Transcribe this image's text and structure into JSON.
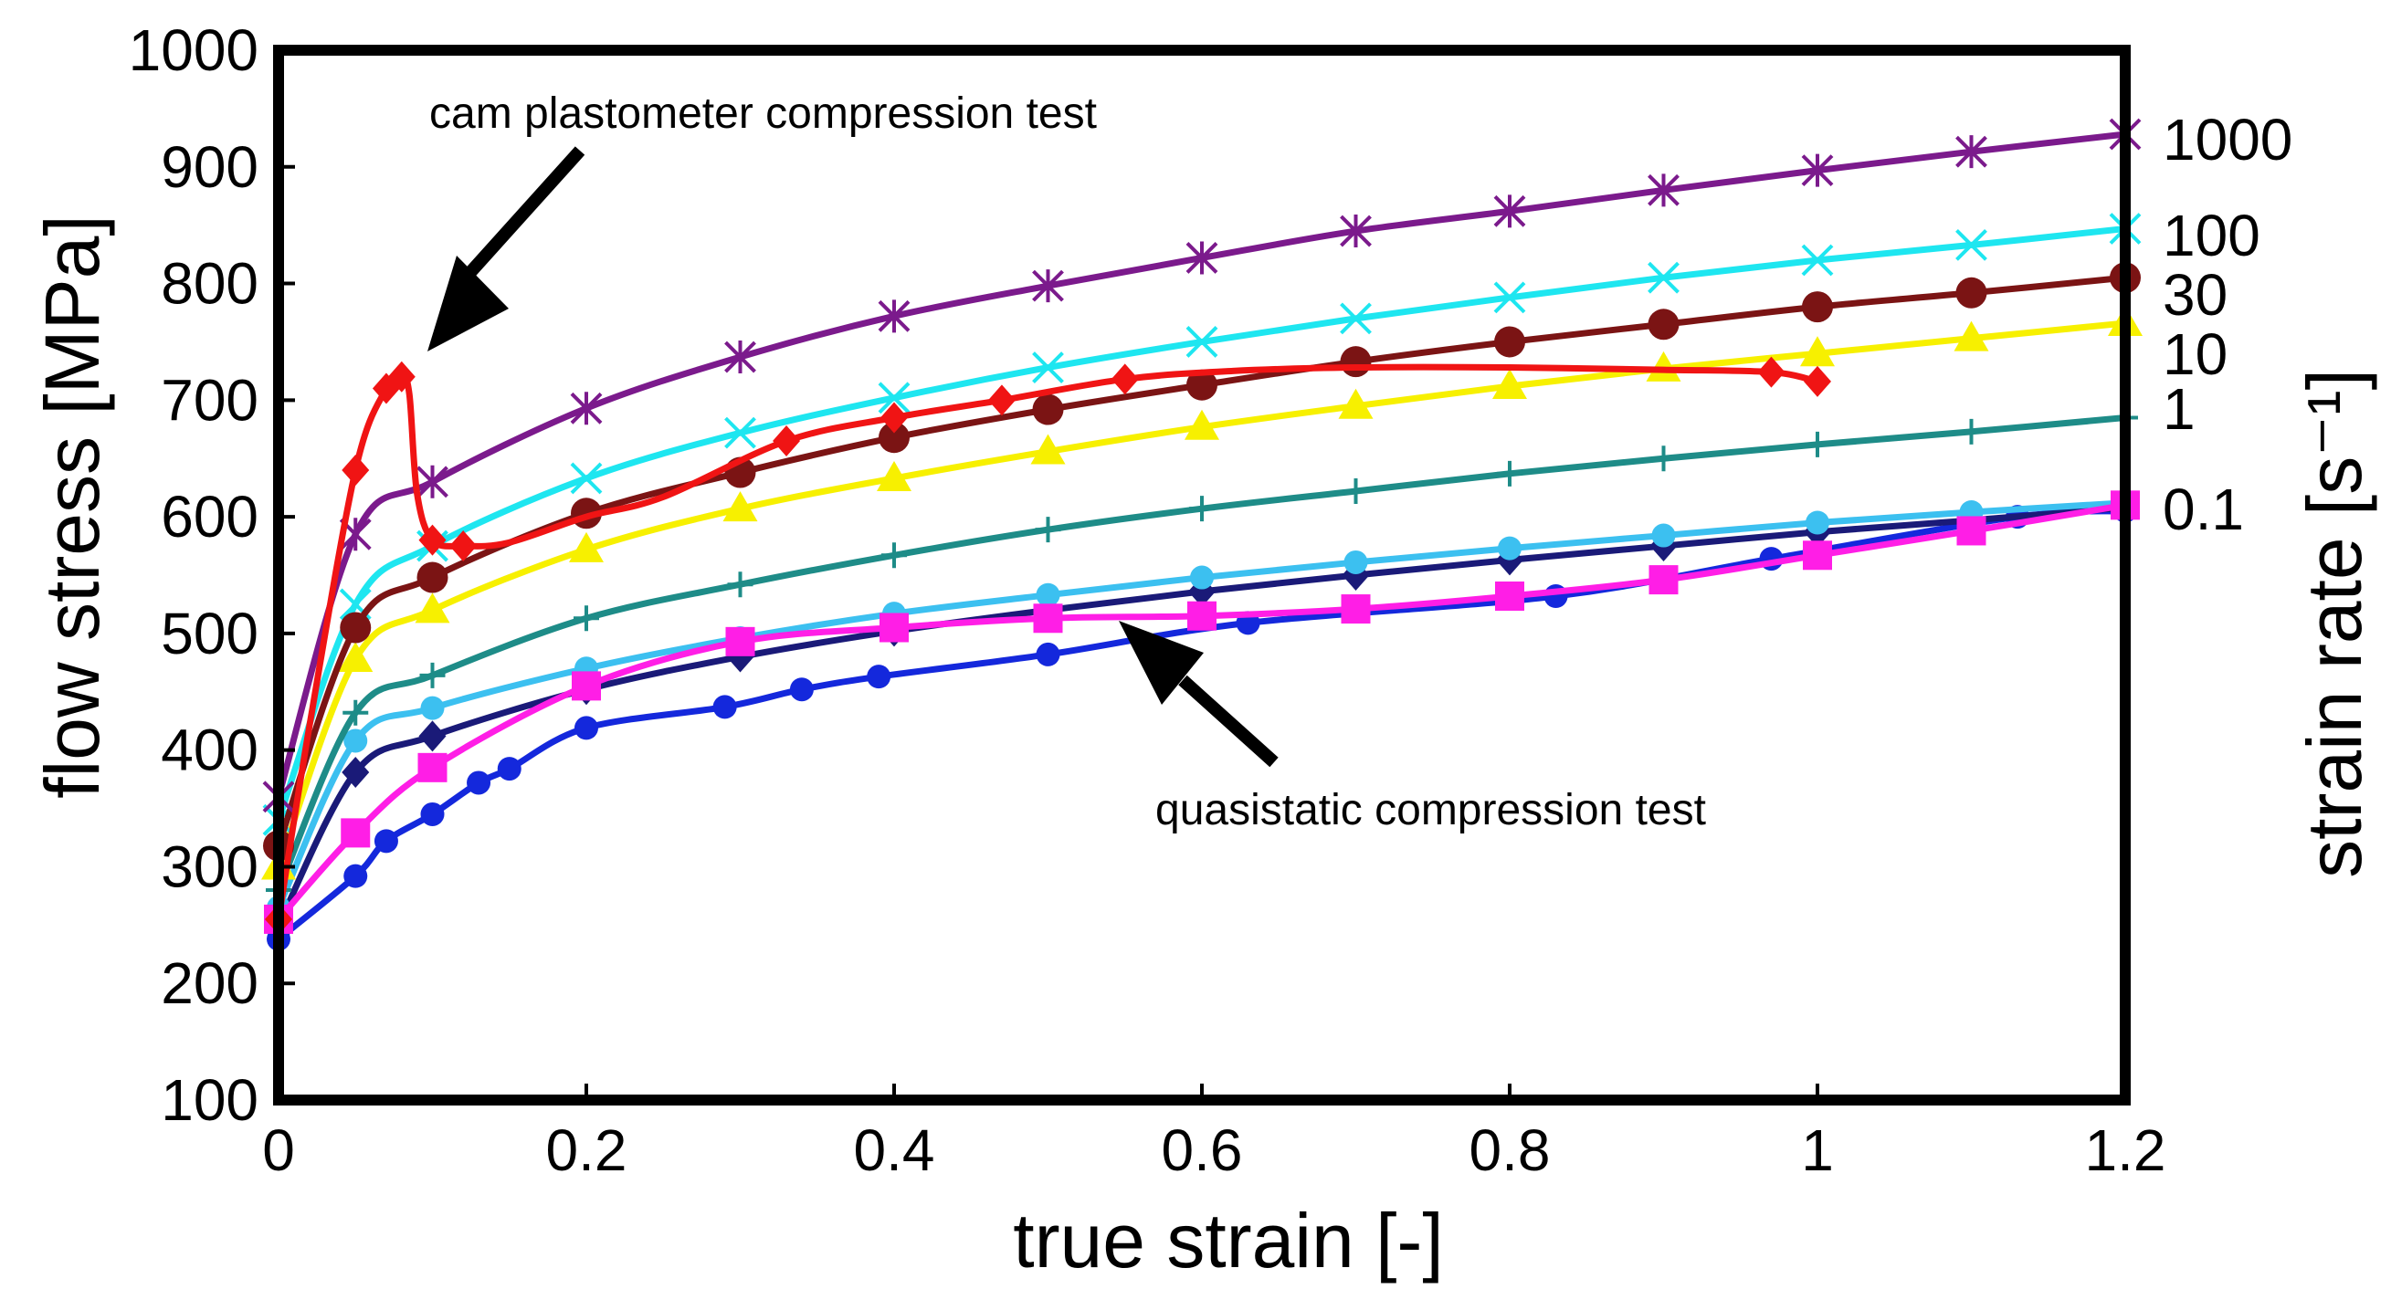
{
  "chart_data": {
    "type": "line",
    "title": "",
    "xlabel": "true strain [-]",
    "ylabel": "flow stress [MPa]",
    "y2label": "strain rate [s⁻¹]",
    "xlim": [
      0,
      1.2
    ],
    "ylim": [
      100,
      1000
    ],
    "x_ticks": [
      "0",
      "0.2",
      "0.4",
      "0.6",
      "0.8",
      "1",
      "1.2"
    ],
    "y_ticks": [
      "100",
      "200",
      "300",
      "400",
      "500",
      "600",
      "700",
      "800",
      "900",
      "1000"
    ],
    "grid": false,
    "series": [
      {
        "name": "1000",
        "color": "#7b1a8c",
        "marker": "asterisk",
        "x": [
          0,
          0.05,
          0.1,
          0.2,
          0.3,
          0.4,
          0.5,
          0.6,
          0.7,
          0.8,
          0.9,
          1.0,
          1.1,
          1.2
        ],
        "y": [
          360,
          585,
          630,
          693,
          737,
          772,
          798,
          822,
          845,
          862,
          880,
          897,
          913,
          928
        ]
      },
      {
        "name": "100",
        "color": "#1ee6f0",
        "marker": "x",
        "x": [
          0,
          0.05,
          0.1,
          0.2,
          0.3,
          0.4,
          0.5,
          0.6,
          0.7,
          0.8,
          0.9,
          1.0,
          1.1,
          1.2
        ],
        "y": [
          340,
          525,
          575,
          633,
          672,
          702,
          728,
          750,
          770,
          788,
          805,
          820,
          833,
          847
        ]
      },
      {
        "name": "30",
        "color": "#7b1414",
        "marker": "circle",
        "x": [
          0,
          0.05,
          0.1,
          0.2,
          0.3,
          0.4,
          0.5,
          0.6,
          0.7,
          0.8,
          0.9,
          1.0,
          1.1,
          1.2
        ],
        "y": [
          318,
          505,
          548,
          603,
          638,
          668,
          692,
          713,
          733,
          750,
          765,
          780,
          792,
          805
        ]
      },
      {
        "name": "10",
        "color": "#f7f000",
        "marker": "triangle",
        "x": [
          0,
          0.05,
          0.1,
          0.2,
          0.3,
          0.4,
          0.5,
          0.6,
          0.7,
          0.8,
          0.9,
          1.0,
          1.1,
          1.2
        ],
        "y": [
          300,
          478,
          520,
          572,
          607,
          633,
          656,
          677,
          695,
          712,
          727,
          740,
          753,
          766
        ]
      },
      {
        "name": "1",
        "color": "#1e8c88",
        "marker": "plus",
        "x": [
          0,
          0.05,
          0.1,
          0.2,
          0.3,
          0.4,
          0.5,
          0.6,
          0.7,
          0.8,
          0.9,
          1.0,
          1.1,
          1.2
        ],
        "y": [
          280,
          432,
          464,
          513,
          542,
          567,
          589,
          607,
          622,
          637,
          650,
          662,
          673,
          685
        ]
      },
      {
        "name": "0.1",
        "color": "#3cc0f0",
        "marker": "circle-small",
        "x": [
          0,
          0.05,
          0.1,
          0.2,
          0.3,
          0.4,
          0.5,
          0.6,
          0.7,
          0.8,
          0.9,
          1.0,
          1.1,
          1.2
        ],
        "y": [
          265,
          408,
          436,
          470,
          496,
          517,
          533,
          548,
          561,
          573,
          584,
          595,
          604,
          612
        ]
      },
      {
        "name": "0.1 (navy)",
        "color": "#1a1a78",
        "marker": "diamond",
        "x": [
          0,
          0.05,
          0.1,
          0.2,
          0.3,
          0.4,
          0.5,
          0.6,
          0.7,
          0.8,
          0.9,
          1.0,
          1.1,
          1.2
        ],
        "y": [
          250,
          381,
          412,
          452,
          480,
          502,
          520,
          536,
          550,
          563,
          575,
          587,
          597,
          608
        ]
      },
      {
        "name": "quasistatic compression test",
        "color": "#ff1ee6",
        "marker": "square",
        "x": [
          0,
          0.05,
          0.1,
          0.2,
          0.3,
          0.4,
          0.5,
          0.6,
          0.7,
          0.8,
          0.9,
          1.0,
          1.1,
          1.2
        ],
        "y": [
          255,
          329,
          385,
          455,
          493,
          505,
          513,
          515,
          521,
          532,
          546,
          567,
          588,
          610
        ]
      },
      {
        "name": "quasistatic compression test (blue)",
        "color": "#1428dc",
        "marker": "circle-small",
        "x": [
          0,
          0.05,
          0.07,
          0.1,
          0.13,
          0.15,
          0.2,
          0.29,
          0.34,
          0.39,
          0.5,
          0.63,
          0.83,
          0.97,
          1.13,
          1.2
        ],
        "y": [
          238,
          292,
          322,
          345,
          372,
          384,
          419,
          437,
          452,
          463,
          482,
          509,
          532,
          564,
          600,
          605
        ]
      },
      {
        "name": "cam plastometer compression test",
        "color": "#f01414",
        "marker": "diamond",
        "x": [
          0,
          0.02,
          0.05,
          0.07,
          0.08,
          0.085,
          0.09,
          0.1,
          0.12,
          0.15,
          0.2,
          0.25,
          0.33,
          0.4,
          0.47,
          0.55,
          0.62,
          0.7,
          0.8,
          0.9,
          0.97,
          1.0
        ],
        "y": [
          255,
          420,
          640,
          710,
          720,
          705,
          620,
          580,
          575,
          578,
          600,
          617,
          665,
          685,
          700,
          718,
          725,
          728,
          728,
          726,
          724,
          716
        ]
      }
    ],
    "right_labels": [
      "1000",
      "100",
      "30",
      "10",
      "1",
      "0.1"
    ],
    "annotations": [
      {
        "text": "cam plastometer compression test"
      },
      {
        "text": "quasistatic compression test"
      }
    ]
  }
}
